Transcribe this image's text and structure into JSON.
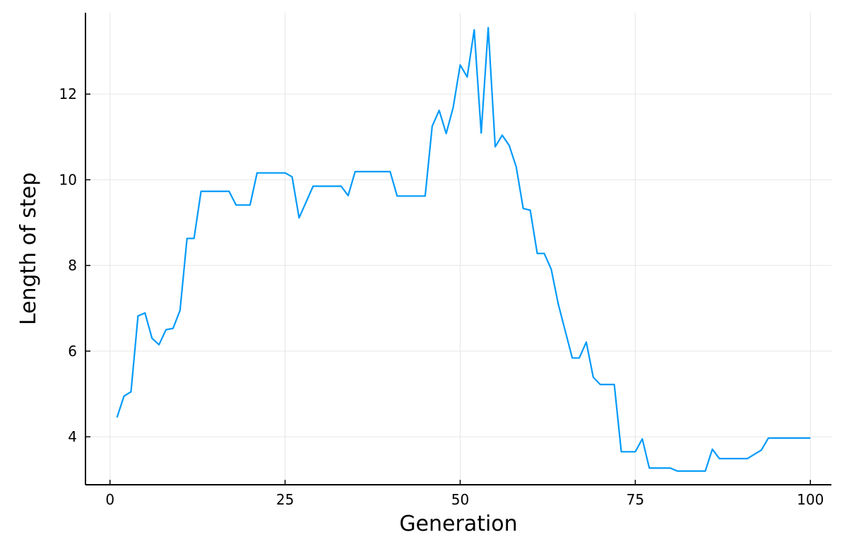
{
  "chart_data": {
    "type": "line",
    "title": "",
    "xlabel": "Generation",
    "ylabel": "Length of step",
    "xlim": [
      -3.5,
      103.0
    ],
    "ylim": [
      2.88,
      13.9
    ],
    "xticks": [
      0,
      25,
      50,
      75,
      100
    ],
    "yticks": [
      4,
      6,
      8,
      10,
      12
    ],
    "grid": true,
    "legend": "none",
    "series": [
      {
        "color": "#009af9",
        "x": [
          1,
          2,
          3,
          4,
          5,
          6,
          7,
          8,
          9,
          10,
          11,
          12,
          13,
          14,
          15,
          16,
          17,
          18,
          19,
          20,
          21,
          22,
          23,
          24,
          25,
          26,
          27,
          28,
          29,
          30,
          31,
          32,
          33,
          34,
          35,
          36,
          37,
          38,
          39,
          40,
          41,
          42,
          43,
          44,
          45,
          46,
          47,
          48,
          49,
          50,
          51,
          52,
          53,
          54,
          55,
          56,
          57,
          58,
          59,
          60,
          61,
          62,
          63,
          64,
          65,
          66,
          67,
          68,
          69,
          70,
          71,
          72,
          73,
          74,
          75,
          76,
          77,
          78,
          79,
          80,
          81,
          82,
          83,
          84,
          85,
          86,
          87,
          88,
          89,
          90,
          91,
          92,
          93,
          94,
          95,
          96,
          97,
          98,
          99,
          100
        ],
        "values": [
          4.45,
          4.95,
          5.05,
          6.82,
          6.89,
          6.3,
          6.15,
          6.5,
          6.53,
          6.95,
          8.63,
          8.63,
          9.73,
          9.73,
          9.73,
          9.73,
          9.73,
          9.41,
          9.41,
          9.41,
          10.16,
          10.16,
          10.16,
          10.16,
          10.16,
          10.07,
          9.11,
          9.48,
          9.85,
          9.85,
          9.85,
          9.85,
          9.85,
          9.63,
          10.19,
          10.19,
          10.19,
          10.19,
          10.19,
          10.19,
          9.62,
          9.62,
          9.62,
          9.62,
          9.62,
          11.25,
          11.62,
          11.08,
          11.69,
          12.68,
          12.4,
          13.5,
          11.09,
          13.55,
          10.77,
          11.04,
          10.8,
          10.3,
          9.33,
          9.29,
          8.28,
          8.28,
          7.91,
          7.1,
          6.47,
          5.84,
          5.84,
          6.21,
          5.39,
          5.22,
          5.22,
          5.22,
          3.65,
          3.65,
          3.65,
          3.95,
          3.27,
          3.27,
          3.27,
          3.27,
          3.2,
          3.2,
          3.2,
          3.2,
          3.2,
          3.71,
          3.49,
          3.49,
          3.49,
          3.49,
          3.49,
          3.59,
          3.69,
          3.97,
          3.97,
          3.97,
          3.97,
          3.97,
          3.97,
          3.97
        ]
      }
    ]
  }
}
